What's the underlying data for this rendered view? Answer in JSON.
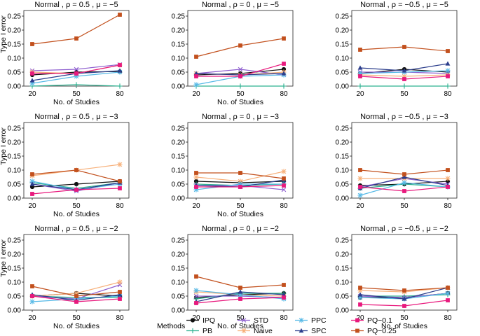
{
  "figure": {
    "ylabel": "Type I error",
    "xlabel": "No. of Studies",
    "legend_title": "Methods",
    "legend_position": "bottom"
  },
  "methods": [
    {
      "name": "IPQ",
      "color": "#111111",
      "marker": "circle"
    },
    {
      "name": "PB",
      "color": "#2bb08f",
      "marker": "plus"
    },
    {
      "name": "STD",
      "color": "#8e5fcf",
      "marker": "x"
    },
    {
      "name": "Naive",
      "color": "#f7b07a",
      "marker": "asterisk"
    },
    {
      "name": "PPC",
      "color": "#56b9e6",
      "marker": "asterisk"
    },
    {
      "name": "SPC",
      "color": "#2c3e8c",
      "marker": "triangle"
    },
    {
      "name": "PQ−0.1",
      "color": "#e8197d",
      "marker": "square"
    },
    {
      "name": "PQ−0.25",
      "color": "#c2501d",
      "marker": "square"
    }
  ],
  "chart_data": [
    {
      "type": "line",
      "title": "Normal , ρ = 0.5 , μ = −5",
      "x": [
        20,
        50,
        80
      ],
      "xticks": [
        "20",
        "50",
        "80"
      ],
      "yticks": [
        "0.00",
        "0.05",
        "0.10",
        "0.15",
        "0.20",
        "0.25"
      ],
      "ylim": [
        0,
        0.27
      ],
      "grid": false,
      "show_ylabel": true,
      "show_xlabel": true,
      "series": [
        {
          "name": "IPQ",
          "values": [
            0.04,
            0.05,
            0.052
          ]
        },
        {
          "name": "PB",
          "values": [
            0.0,
            0.005,
            0.0
          ]
        },
        {
          "name": "STD",
          "values": [
            0.055,
            0.06,
            0.077
          ]
        },
        {
          "name": "Naive",
          "values": [
            0.05,
            0.045,
            0.075
          ]
        },
        {
          "name": "PPC",
          "values": [
            0.01,
            0.035,
            0.05
          ]
        },
        {
          "name": "SPC",
          "values": [
            0.02,
            0.045,
            0.055
          ]
        },
        {
          "name": "PQ−0.1",
          "values": [
            0.045,
            0.045,
            0.075
          ]
        },
        {
          "name": "PQ−0.25",
          "values": [
            0.15,
            0.17,
            0.255
          ]
        }
      ]
    },
    {
      "type": "line",
      "title": "Normal , ρ = 0 , μ = −5",
      "x": [
        20,
        50,
        80
      ],
      "xticks": [
        "20",
        "50",
        "80"
      ],
      "yticks": [
        "0.00",
        "0.05",
        "0.10",
        "0.15",
        "0.20",
        "0.25"
      ],
      "ylim": [
        0,
        0.27
      ],
      "grid": false,
      "show_ylabel": false,
      "show_xlabel": true,
      "series": [
        {
          "name": "IPQ",
          "values": [
            0.04,
            0.045,
            0.06
          ]
        },
        {
          "name": "PB",
          "values": [
            0.0,
            0.0,
            0.0
          ]
        },
        {
          "name": "STD",
          "values": [
            0.045,
            0.06,
            0.04
          ]
        },
        {
          "name": "Naive",
          "values": [
            0.045,
            0.04,
            0.05
          ]
        },
        {
          "name": "PPC",
          "values": [
            0.005,
            0.035,
            0.04
          ]
        },
        {
          "name": "SPC",
          "values": [
            0.045,
            0.04,
            0.045
          ]
        },
        {
          "name": "PQ−0.1",
          "values": [
            0.035,
            0.035,
            0.08
          ]
        },
        {
          "name": "PQ−0.25",
          "values": [
            0.105,
            0.145,
            0.17
          ]
        }
      ]
    },
    {
      "type": "line",
      "title": "Normal , ρ = −0.5 , μ = −5",
      "x": [
        20,
        50,
        80
      ],
      "xticks": [
        "20",
        "50",
        "80"
      ],
      "yticks": [
        "0.00",
        "0.05",
        "0.10",
        "0.15",
        "0.20",
        "0.25"
      ],
      "ylim": [
        0,
        0.27
      ],
      "grid": false,
      "show_ylabel": false,
      "show_xlabel": false,
      "series": [
        {
          "name": "IPQ",
          "values": [
            0.045,
            0.06,
            0.05
          ]
        },
        {
          "name": "PB",
          "values": [
            0.0,
            0.0,
            0.0
          ]
        },
        {
          "name": "STD",
          "values": [
            0.05,
            0.05,
            0.045
          ]
        },
        {
          "name": "Naive",
          "values": [
            0.04,
            0.035,
            0.04
          ]
        },
        {
          "name": "PPC",
          "values": [
            0.045,
            0.05,
            0.055
          ]
        },
        {
          "name": "SPC",
          "values": [
            0.065,
            0.055,
            0.08
          ]
        },
        {
          "name": "PQ−0.1",
          "values": [
            0.035,
            0.025,
            0.035
          ]
        },
        {
          "name": "PQ−0.25",
          "values": [
            0.13,
            0.14,
            0.125
          ]
        }
      ]
    },
    {
      "type": "line",
      "title": "Normal , ρ = 0.5 , μ = −3",
      "x": [
        20,
        50,
        80
      ],
      "xticks": [
        "20",
        "50",
        "80"
      ],
      "yticks": [
        "0.00",
        "0.05",
        "0.10",
        "0.15",
        "0.20",
        "0.25"
      ],
      "ylim": [
        0,
        0.27
      ],
      "grid": false,
      "show_ylabel": true,
      "show_xlabel": true,
      "series": [
        {
          "name": "IPQ",
          "values": [
            0.04,
            0.05,
            0.06
          ]
        },
        {
          "name": "PB",
          "values": [
            0.055,
            0.035,
            0.055
          ]
        },
        {
          "name": "STD",
          "values": [
            0.05,
            0.025,
            0.055
          ]
        },
        {
          "name": "Naive",
          "values": [
            0.08,
            0.1,
            0.12
          ]
        },
        {
          "name": "PPC",
          "values": [
            0.06,
            0.03,
            0.05
          ]
        },
        {
          "name": "SPC",
          "values": [
            0.05,
            0.03,
            0.055
          ]
        },
        {
          "name": "PQ−0.1",
          "values": [
            0.015,
            0.03,
            0.035
          ]
        },
        {
          "name": "PQ−0.25",
          "values": [
            0.085,
            0.1,
            0.06
          ]
        }
      ]
    },
    {
      "type": "line",
      "title": "Normal , ρ = 0 , μ = −3",
      "x": [
        20,
        50,
        80
      ],
      "xticks": [
        "20",
        "50",
        "80"
      ],
      "yticks": [
        "0.00",
        "0.05",
        "0.10",
        "0.15",
        "0.20",
        "0.25"
      ],
      "ylim": [
        0,
        0.27
      ],
      "grid": false,
      "show_ylabel": false,
      "show_xlabel": true,
      "series": [
        {
          "name": "IPQ",
          "values": [
            0.06,
            0.055,
            0.06
          ]
        },
        {
          "name": "PB",
          "values": [
            0.05,
            0.045,
            0.05
          ]
        },
        {
          "name": "STD",
          "values": [
            0.045,
            0.045,
            0.03
          ]
        },
        {
          "name": "Naive",
          "values": [
            0.075,
            0.06,
            0.095
          ]
        },
        {
          "name": "PPC",
          "values": [
            0.03,
            0.05,
            0.05
          ]
        },
        {
          "name": "SPC",
          "values": [
            0.045,
            0.04,
            0.065
          ]
        },
        {
          "name": "PQ−0.1",
          "values": [
            0.04,
            0.04,
            0.045
          ]
        },
        {
          "name": "PQ−0.25",
          "values": [
            0.09,
            0.09,
            0.07
          ]
        }
      ]
    },
    {
      "type": "line",
      "title": "Normal , ρ = −0.5 , μ = −3",
      "x": [
        20,
        50,
        80
      ],
      "xticks": [
        "20",
        "50",
        "80"
      ],
      "yticks": [
        "0.00",
        "0.05",
        "0.10",
        "0.15",
        "0.20",
        "0.25"
      ],
      "ylim": [
        0,
        0.27
      ],
      "grid": false,
      "show_ylabel": false,
      "show_xlabel": false,
      "series": [
        {
          "name": "IPQ",
          "values": [
            0.045,
            0.05,
            0.06
          ]
        },
        {
          "name": "PB",
          "values": [
            0.035,
            0.05,
            0.04
          ]
        },
        {
          "name": "STD",
          "values": [
            0.04,
            0.07,
            0.05
          ]
        },
        {
          "name": "Naive",
          "values": [
            0.07,
            0.07,
            0.07
          ]
        },
        {
          "name": "PPC",
          "values": [
            0.01,
            0.055,
            0.04
          ]
        },
        {
          "name": "SPC",
          "values": [
            0.035,
            0.075,
            0.045
          ]
        },
        {
          "name": "PQ−0.1",
          "values": [
            0.04,
            0.025,
            0.04
          ]
        },
        {
          "name": "PQ−0.25",
          "values": [
            0.1,
            0.085,
            0.1
          ]
        }
      ]
    },
    {
      "type": "line",
      "title": "Normal , ρ = 0.5 , μ = −2",
      "x": [
        20,
        50,
        80
      ],
      "xticks": [
        "20",
        "50",
        "80"
      ],
      "yticks": [
        "0.00",
        "0.05",
        "0.10",
        "0.15",
        "0.20",
        "0.25"
      ],
      "ylim": [
        0,
        0.27
      ],
      "grid": false,
      "show_ylabel": true,
      "show_xlabel": true,
      "series": [
        {
          "name": "IPQ",
          "values": [
            0.05,
            0.06,
            0.05
          ]
        },
        {
          "name": "PB",
          "values": [
            0.05,
            0.045,
            0.045
          ]
        },
        {
          "name": "STD",
          "values": [
            0.05,
            0.04,
            0.09
          ]
        },
        {
          "name": "Naive",
          "values": [
            0.05,
            0.06,
            0.1
          ]
        },
        {
          "name": "PPC",
          "values": [
            0.03,
            0.04,
            0.05
          ]
        },
        {
          "name": "SPC",
          "values": [
            0.055,
            0.035,
            0.055
          ]
        },
        {
          "name": "PQ−0.1",
          "values": [
            0.05,
            0.03,
            0.04
          ]
        },
        {
          "name": "PQ−0.25",
          "values": [
            0.085,
            0.05,
            0.065
          ]
        }
      ]
    },
    {
      "type": "line",
      "title": "Normal , ρ = 0 , μ = −2",
      "x": [
        20,
        50,
        80
      ],
      "xticks": [
        "20",
        "50",
        "80"
      ],
      "yticks": [
        "0.00",
        "0.05",
        "0.10",
        "0.15",
        "0.20",
        "0.25"
      ],
      "ylim": [
        0,
        0.27
      ],
      "grid": false,
      "show_ylabel": false,
      "show_xlabel": true,
      "series": [
        {
          "name": "IPQ",
          "values": [
            0.045,
            0.055,
            0.06
          ]
        },
        {
          "name": "PB",
          "values": [
            0.04,
            0.06,
            0.06
          ]
        },
        {
          "name": "STD",
          "values": [
            0.05,
            0.05,
            0.045
          ]
        },
        {
          "name": "Naive",
          "values": [
            0.065,
            0.055,
            0.05
          ]
        },
        {
          "name": "PPC",
          "values": [
            0.07,
            0.055,
            0.04
          ]
        },
        {
          "name": "SPC",
          "values": [
            0.03,
            0.065,
            0.055
          ]
        },
        {
          "name": "PQ−0.1",
          "values": [
            0.025,
            0.04,
            0.045
          ]
        },
        {
          "name": "PQ−0.25",
          "values": [
            0.12,
            0.08,
            0.09
          ]
        }
      ]
    },
    {
      "type": "line",
      "title": "Normal , ρ = −0.5 , μ = −2",
      "x": [
        20,
        50,
        80
      ],
      "xticks": [
        "20",
        "50",
        "80"
      ],
      "yticks": [
        "0.00",
        "0.05",
        "0.10",
        "0.15",
        "0.20",
        "0.25"
      ],
      "ylim": [
        0,
        0.27
      ],
      "grid": false,
      "show_ylabel": false,
      "show_xlabel": true,
      "series": [
        {
          "name": "IPQ",
          "values": [
            0.045,
            0.045,
            0.06
          ]
        },
        {
          "name": "PB",
          "values": [
            0.05,
            0.05,
            0.055
          ]
        },
        {
          "name": "STD",
          "values": [
            0.05,
            0.045,
            0.06
          ]
        },
        {
          "name": "Naive",
          "values": [
            0.07,
            0.065,
            0.08
          ]
        },
        {
          "name": "PPC",
          "values": [
            0.045,
            0.04,
            0.06
          ]
        },
        {
          "name": "SPC",
          "values": [
            0.055,
            0.04,
            0.08
          ]
        },
        {
          "name": "PQ−0.1",
          "values": [
            0.02,
            0.015,
            0.035
          ]
        },
        {
          "name": "PQ−0.25",
          "values": [
            0.08,
            0.07,
            0.08
          ]
        }
      ]
    }
  ]
}
